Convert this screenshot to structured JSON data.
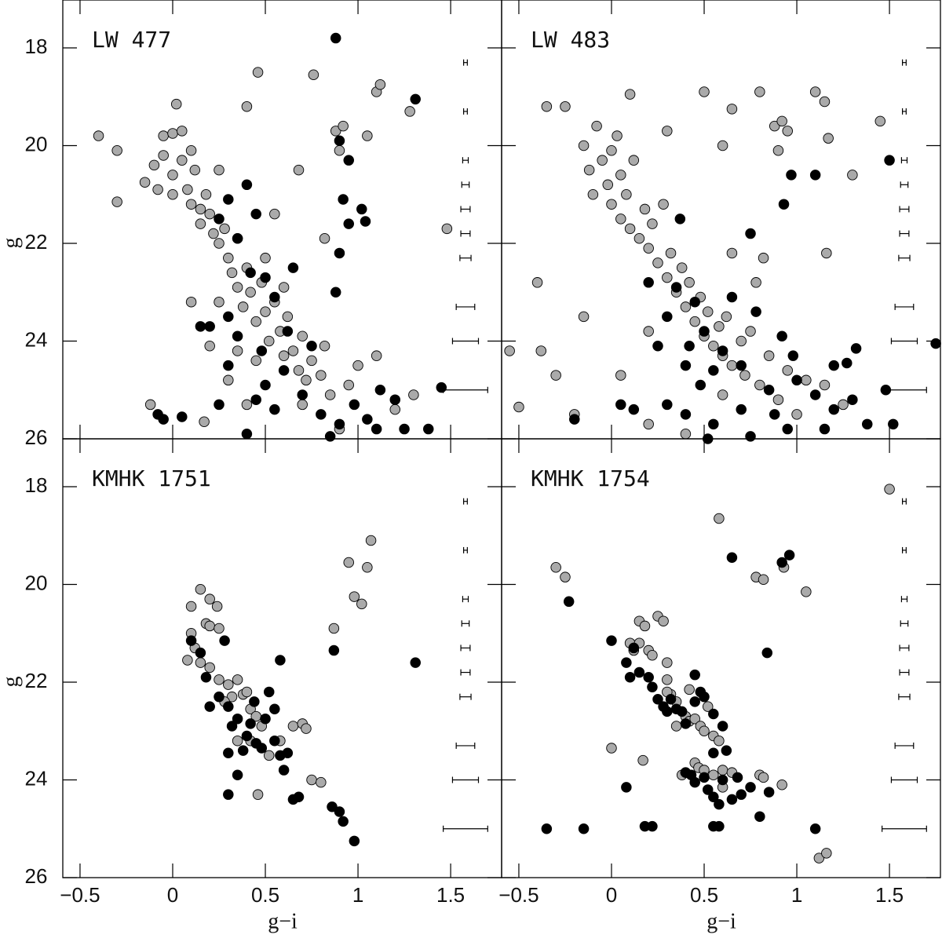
{
  "axes": {
    "x_label": "g−i",
    "y_label": "g",
    "xlim": [
      -0.593,
      1.775
    ],
    "ylim": [
      26,
      17.02
    ],
    "xticks": [
      {
        "value": -0.5,
        "label": "−0.5"
      },
      0,
      0.5,
      1,
      1.5
    ],
    "yticks": [
      18,
      20,
      22,
      24,
      26
    ]
  },
  "error_bars": {
    "x": 1.58,
    "g": [
      18.3,
      19.3,
      20.3,
      20.8,
      21.3,
      21.8,
      22.3,
      23.3,
      24,
      25
    ],
    "err": [
      0.01,
      0.01,
      0.015,
      0.02,
      0.025,
      0.025,
      0.03,
      0.05,
      0.07,
      0.12
    ]
  },
  "chart_data": [
    {
      "type": "scatter",
      "title": "LW 477",
      "series": [
        {
          "color": "#aaaaaa",
          "x": [
            -0.4,
            -0.3,
            -0.3,
            -0.15,
            -0.1,
            -0.08,
            -0.05,
            -0.05,
            0,
            0,
            0,
            0.02,
            0.05,
            0.05,
            0.08,
            0.1,
            0.1,
            0.12,
            0.15,
            0.15,
            0.18,
            0.2,
            0.22,
            0.25,
            0.25,
            0.28,
            0.3,
            0.32,
            0.35,
            0.35,
            0.38,
            0.4,
            0.4,
            0.42,
            0.45,
            0.46,
            0.48,
            0.5,
            0.52,
            0.55,
            0.55,
            0.58,
            0.6,
            0.6,
            0.62,
            0.65,
            0.68,
            0.7,
            0.72,
            0.75,
            0.76,
            0.8,
            0.82,
            0.85,
            0.88,
            0.9,
            0.92,
            0.95,
            1.0,
            1.05,
            1.1,
            1.12,
            1.2,
            1.28,
            1.3,
            1.48,
            0.2,
            0.3,
            0.1,
            0.45,
            0.7,
            0.9,
            1.1,
            0.68,
            0.4,
            0.82,
            -0.12,
            0.17,
            0.25,
            0.5,
            0.35
          ],
          "y": [
            19.8,
            20.1,
            21.15,
            20.75,
            20.4,
            20.9,
            20.2,
            19.8,
            19.75,
            20.6,
            21,
            19.15,
            20.3,
            19.7,
            20.9,
            20.1,
            21.2,
            20.5,
            21.3,
            21.6,
            21,
            21.4,
            21.8,
            20.5,
            22,
            21.7,
            22.3,
            22.6,
            21.9,
            22.9,
            23.3,
            22.5,
            19.2,
            23,
            23.6,
            18.5,
            22.8,
            23.4,
            24,
            23.2,
            21.4,
            23.8,
            22.9,
            24.3,
            23.5,
            24.2,
            24.6,
            23.9,
            24.8,
            24.4,
            18.55,
            24.7,
            24.1,
            25.1,
            19.7,
            20.1,
            19.6,
            24.9,
            24.5,
            19.8,
            18.9,
            18.75,
            25.4,
            19.3,
            25.1,
            21.7,
            24.1,
            24.8,
            23.2,
            24.4,
            25.3,
            25.8,
            24.3,
            20.5,
            25.3,
            21.9,
            25.3,
            25.65,
            23.2,
            22.3,
            24.2
          ]
        },
        {
          "color": "#000000",
          "x": [
            0.88,
            1.31,
            0.4,
            0.3,
            0.45,
            0.25,
            0.35,
            0.42,
            0.5,
            0.55,
            0.3,
            0.2,
            0.62,
            0.48,
            0.35,
            0.75,
            0.6,
            0.5,
            0.45,
            0.55,
            0.7,
            0.8,
            0.9,
            0.98,
            1.05,
            1.1,
            1.2,
            1.25,
            1.38,
            1.45,
            0.25,
            0.05,
            -0.08,
            -0.05,
            0.4,
            0.85,
            0.88,
            0.92,
            0.95,
            1.02,
            1.04,
            0.9,
            0.9,
            0.95,
            0.3,
            0.65,
            1.12,
            0.15
          ],
          "y": [
            17.8,
            19.05,
            20.8,
            21.1,
            21.4,
            21.5,
            21.9,
            22.6,
            22.7,
            23.1,
            23.5,
            23.7,
            23.8,
            24.2,
            23.9,
            24.1,
            24.6,
            24.9,
            25.2,
            25.4,
            25.1,
            25.5,
            25.7,
            25.3,
            25.6,
            25.8,
            25.2,
            25.8,
            25.8,
            24.95,
            25.3,
            25.55,
            25.5,
            25.6,
            25.9,
            25.95,
            23,
            21.1,
            21.6,
            21.3,
            21.55,
            22.2,
            19.9,
            20.3,
            24.5,
            22.5,
            25,
            23.7
          ]
        }
      ]
    },
    {
      "type": "scatter",
      "title": "LW 483",
      "series": [
        {
          "color": "#aaaaaa",
          "x": [
            -0.15,
            -0.12,
            -0.1,
            -0.08,
            -0.05,
            -0.02,
            0,
            0,
            0.03,
            0.05,
            0.05,
            0.08,
            0.1,
            0.12,
            0.15,
            0.18,
            0.2,
            0.22,
            0.25,
            0.28,
            0.3,
            0.32,
            0.35,
            0.38,
            0.4,
            0.42,
            0.45,
            0.48,
            0.5,
            0.52,
            0.55,
            0.58,
            0.6,
            0.62,
            0.65,
            0.7,
            0.72,
            0.75,
            0.8,
            0.85,
            0.9,
            0.95,
            1,
            1.05,
            0.1,
            -0.35,
            -0.25,
            0.3,
            0.5,
            0.6,
            0.65,
            0.8,
            0.88,
            0.9,
            0.92,
            0.95,
            1.1,
            1.15,
            1.17,
            1.3,
            1.45,
            1.16,
            0.78,
            0.82,
            -0.4,
            -0.3,
            -0.55,
            -0.5,
            -0.2,
            0.05,
            0.2,
            0.4,
            -0.15,
            0.2,
            0.6,
            1.25,
            1.15,
            -0.38,
            0.65
          ],
          "y": [
            20,
            20.5,
            21,
            19.6,
            20.3,
            20.8,
            20.1,
            21.2,
            19.8,
            20.6,
            21.5,
            21,
            21.7,
            20.3,
            21.9,
            21.3,
            22.1,
            21.6,
            22.4,
            21.2,
            22.7,
            22.2,
            23,
            22.5,
            23.3,
            22.8,
            23.6,
            23.1,
            23.9,
            23.4,
            24.1,
            23.7,
            24.3,
            23.5,
            24.5,
            24,
            24.7,
            23.8,
            24.9,
            24.3,
            25.2,
            24.6,
            25.5,
            24.8,
            18.95,
            19.2,
            19.2,
            19.7,
            18.9,
            20,
            19.25,
            18.9,
            19.6,
            20.1,
            19.5,
            19.7,
            18.9,
            19.1,
            19.85,
            20.6,
            19.5,
            22.2,
            22.8,
            22.3,
            22.8,
            24.7,
            24.2,
            25.35,
            25.5,
            24.7,
            25.7,
            25.9,
            23.5,
            23.8,
            25.1,
            25.3,
            24.9,
            24.2,
            22.2
          ]
        },
        {
          "color": "#000000",
          "x": [
            1.5,
            1.1,
            0.93,
            0.97,
            0.75,
            0.2,
            0.35,
            0.45,
            0.3,
            0.5,
            0.42,
            0.6,
            0.55,
            0.48,
            0.7,
            0.78,
            0.92,
            0.85,
            1,
            1.1,
            1.2,
            1.3,
            1.38,
            1.52,
            1.75,
            1.32,
            1.27,
            1.48,
            0.3,
            0.4,
            0.55,
            0.7,
            0.75,
            0.95,
            0.05,
            0.12,
            -0.2,
            0.52,
            1.15,
            0.88,
            0.4,
            0.25,
            0.65,
            0.98,
            1.2,
            0.37
          ],
          "y": [
            20.3,
            20.6,
            21.2,
            20.6,
            21.8,
            22.8,
            22.9,
            23.2,
            23.5,
            23.8,
            24.1,
            24.2,
            24.6,
            24.9,
            24.5,
            23.4,
            23.9,
            25,
            24.8,
            25.1,
            25.4,
            25.2,
            25.7,
            25.7,
            24.05,
            24.15,
            24.45,
            25,
            25.3,
            25.5,
            25.7,
            25.4,
            25.95,
            25.8,
            25.3,
            25.4,
            25.6,
            26,
            25.8,
            25.5,
            24.5,
            24.1,
            23.1,
            24.3,
            24.5,
            21.5
          ]
        }
      ]
    },
    {
      "type": "scatter",
      "title": "KMHK 1751",
      "series": [
        {
          "color": "#aaaaaa",
          "x": [
            0.15,
            0.1,
            0.2,
            0.24,
            0.18,
            0.2,
            0.25,
            0.1,
            0.12,
            0.08,
            0.15,
            0.2,
            0.25,
            0.3,
            0.35,
            0.32,
            0.38,
            0.4,
            0.42,
            0.45,
            0.35,
            0.42,
            0.52,
            0.65,
            0.7,
            0.72,
            0.75,
            0.8,
            0.46,
            0.87,
            0.95,
            0.98,
            1.02,
            1.05,
            1.07,
            0.28,
            0.48,
            0.58
          ],
          "y": [
            20.1,
            20.45,
            20.3,
            20.45,
            20.8,
            20.85,
            20.9,
            21,
            21.3,
            21.55,
            21.6,
            21.7,
            21.95,
            22.05,
            21.95,
            22.3,
            22.25,
            22.2,
            22.55,
            22.7,
            23.2,
            23.2,
            23.5,
            22.9,
            22.85,
            22.95,
            24,
            24.05,
            24.3,
            20.9,
            19.55,
            20.25,
            20.4,
            19.65,
            19.1,
            22.4,
            22.9,
            23.2
          ]
        },
        {
          "color": "#000000",
          "x": [
            0.1,
            0.15,
            0.18,
            0.2,
            0.28,
            0.3,
            0.32,
            0.35,
            0.3,
            0.38,
            0.4,
            0.42,
            0.45,
            0.48,
            0.5,
            0.52,
            0.55,
            0.55,
            0.58,
            0.6,
            0.62,
            0.65,
            0.68,
            0.58,
            0.87,
            0.86,
            0.9,
            0.92,
            0.98,
            1.31,
            0.3,
            0.35,
            0.25,
            0.44
          ],
          "y": [
            21.15,
            21.4,
            21.9,
            22.5,
            21.15,
            22.5,
            22.9,
            22.75,
            23.45,
            23.4,
            23.1,
            22.85,
            23.25,
            23.35,
            22.75,
            22.2,
            22.55,
            23.2,
            23.5,
            23.8,
            23.45,
            24.4,
            24.35,
            21.55,
            21.35,
            24.55,
            24.65,
            24.85,
            25.25,
            21.6,
            24.3,
            23.9,
            22.3,
            22.4
          ]
        }
      ]
    },
    {
      "type": "scatter",
      "title": "KMHK 1754",
      "series": [
        {
          "color": "#aaaaaa",
          "x": [
            1.5,
            0.58,
            -0.3,
            -0.25,
            0.78,
            0.82,
            0.93,
            1.05,
            0.15,
            0.18,
            0.25,
            0.28,
            0.1,
            0.12,
            0.15,
            0.2,
            0.22,
            0.3,
            0.3,
            0.32,
            0.35,
            0.4,
            0.42,
            0.45,
            0.48,
            0.5,
            0.55,
            0.35,
            0.3,
            0.58,
            0.38,
            0.4,
            0.45,
            0.47,
            0.5,
            0.55,
            0.6,
            0.65,
            0.8,
            0.82,
            0.92,
            0,
            0.17,
            1.12,
            1.16,
            0.6,
            0.42,
            0.52
          ],
          "y": [
            18.05,
            18.65,
            19.65,
            19.85,
            19.85,
            19.9,
            19.65,
            20.15,
            20.75,
            20.85,
            20.65,
            20.75,
            21.2,
            21.35,
            21.2,
            21.35,
            21.45,
            21.6,
            21.95,
            22.25,
            22.4,
            22.7,
            22.8,
            22.75,
            22.9,
            23,
            23.1,
            22.9,
            22.2,
            23.2,
            23.9,
            23.85,
            23.65,
            23.75,
            23.8,
            23.9,
            23.8,
            23.85,
            23.9,
            23.95,
            24.1,
            23.35,
            23.6,
            25.6,
            25.5,
            24.15,
            22.15,
            22.5
          ]
        },
        {
          "color": "#000000",
          "x": [
            0.65,
            0.92,
            0.96,
            -0.23,
            0,
            0.08,
            0.1,
            0.15,
            0.2,
            0.22,
            0.25,
            0.28,
            0.3,
            0.32,
            0.35,
            0.38,
            0.4,
            0.45,
            0.48,
            0.5,
            0.55,
            0.6,
            0.62,
            0.55,
            0.45,
            0.5,
            0.52,
            0.55,
            0.6,
            0.65,
            0.7,
            0.75,
            0.8,
            0.85,
            0.4,
            0.43,
            0.58,
            0.84,
            0.45,
            0.08,
            -0.35,
            -0.15,
            0.18,
            0.22,
            0.55,
            0.58,
            1.1,
            0.12,
            0.68
          ],
          "y": [
            19.45,
            19.55,
            19.4,
            20.35,
            21.15,
            21.6,
            21.9,
            21.8,
            21.9,
            22.1,
            22.35,
            22.5,
            22.6,
            22.35,
            22.55,
            22.6,
            22.85,
            22.4,
            22.2,
            22.3,
            22.65,
            22.9,
            23.4,
            23.45,
            24.05,
            23.95,
            24.2,
            24.35,
            24,
            24.4,
            24.3,
            24.15,
            24.75,
            24.25,
            23.85,
            23.9,
            24.5,
            21.4,
            21.85,
            24.15,
            25,
            25,
            24.95,
            24.95,
            24.95,
            24.95,
            25,
            21.3,
            23.95
          ]
        }
      ]
    }
  ]
}
